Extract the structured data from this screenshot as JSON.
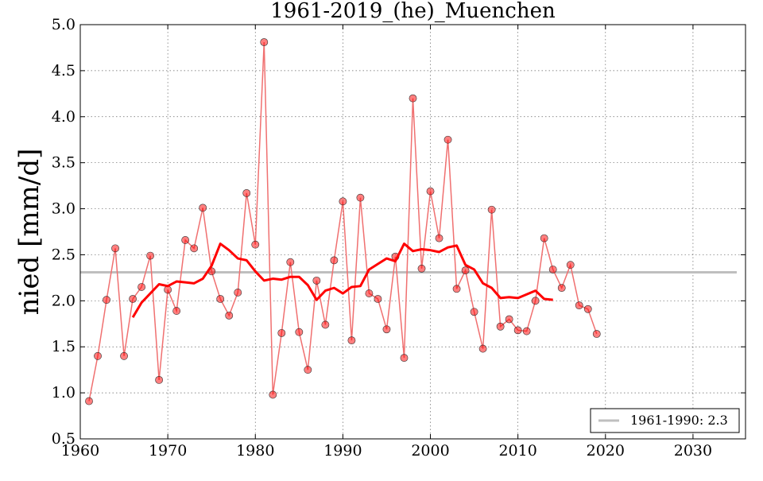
{
  "chart_data": {
    "type": "line",
    "title": "1961-2019_(he)_Muenchen",
    "xlabel": "",
    "ylabel": "nied [mm/d]",
    "xlim": [
      1960,
      2036
    ],
    "ylim": [
      0.5,
      5.0
    ],
    "x_ticks": [
      1960,
      1970,
      1980,
      1990,
      2000,
      2010,
      2020,
      2030
    ],
    "y_ticks": [
      0.5,
      1.0,
      1.5,
      2.0,
      2.5,
      3.0,
      3.5,
      4.0,
      4.5,
      5.0
    ],
    "x_tick_labels": [
      "1960",
      "1970",
      "1980",
      "1990",
      "2000",
      "2010",
      "2020",
      "2030"
    ],
    "y_tick_labels": [
      "0.5",
      "1.0",
      "1.5",
      "2.0",
      "2.5",
      "3.0",
      "3.5",
      "4.0",
      "4.5",
      "5.0"
    ],
    "grid": true,
    "legend_position": "bottom-right",
    "series": [
      {
        "x": [
          1961,
          1962,
          1963,
          1964,
          1965,
          1966,
          1967,
          1968,
          1969,
          1970,
          1971,
          1972,
          1973,
          1974,
          1975,
          1976,
          1977,
          1978,
          1979,
          1980,
          1981,
          1982,
          1983,
          1984,
          1985,
          1986,
          1987,
          1988,
          1989,
          1990,
          1991,
          1992,
          1993,
          1994,
          1995,
          1996,
          1997,
          1998,
          1999,
          2000,
          2001,
          2002,
          2003,
          2004,
          2005,
          2006,
          2007,
          2008,
          2009,
          2010,
          2011,
          2012,
          2013,
          2014,
          2015,
          2016,
          2017,
          2018,
          2019
        ],
        "values": [
          0.91,
          1.4,
          2.01,
          2.57,
          1.4,
          2.02,
          2.15,
          2.49,
          1.14,
          2.12,
          1.89,
          2.66,
          2.57,
          3.01,
          2.32,
          2.02,
          1.84,
          2.09,
          3.17,
          2.61,
          4.81,
          0.98,
          1.65,
          2.42,
          1.66,
          1.25,
          2.22,
          1.74,
          2.44,
          3.08,
          1.57,
          3.12,
          2.08,
          2.02,
          1.69,
          2.48,
          1.38,
          4.2,
          2.35,
          3.19,
          2.68,
          3.75,
          2.13,
          2.33,
          1.88,
          1.48,
          2.99,
          1.72,
          1.8,
          1.68,
          1.67,
          2.0,
          2.68,
          2.34,
          2.14,
          2.39,
          1.95,
          1.91,
          1.64
        ],
        "color": "#ff0000"
      },
      {
        "x": [
          1966,
          1967,
          1968,
          1969,
          1970,
          1971,
          1972,
          1973,
          1974,
          1975,
          1976,
          1977,
          1978,
          1979,
          1980,
          1981,
          1982,
          1983,
          1984,
          1985,
          1986,
          1987,
          1988,
          1989,
          1990,
          1991,
          1992,
          1993,
          1994,
          1995,
          1996,
          1997,
          1998,
          1999,
          2000,
          2001,
          2002,
          2003,
          2004,
          2005,
          2006,
          2007,
          2008,
          2009,
          2010,
          2011,
          2012,
          2013,
          2014
        ],
        "values": [
          1.82,
          1.98,
          2.08,
          2.18,
          2.16,
          2.21,
          2.2,
          2.19,
          2.24,
          2.38,
          2.62,
          2.55,
          2.46,
          2.44,
          2.32,
          2.22,
          2.24,
          2.23,
          2.26,
          2.26,
          2.17,
          2.01,
          2.11,
          2.14,
          2.08,
          2.15,
          2.16,
          2.34,
          2.4,
          2.46,
          2.43,
          2.62,
          2.54,
          2.56,
          2.55,
          2.53,
          2.58,
          2.6,
          2.39,
          2.34,
          2.19,
          2.14,
          2.03,
          2.04,
          2.03,
          2.07,
          2.11,
          2.02,
          2.01
        ],
        "color": "#ff0000"
      },
      {
        "name": "1961-1990: 2.3",
        "x": [
          1960,
          2035
        ],
        "values": [
          2.31,
          2.31
        ],
        "color": "#bfbfbf"
      }
    ]
  }
}
